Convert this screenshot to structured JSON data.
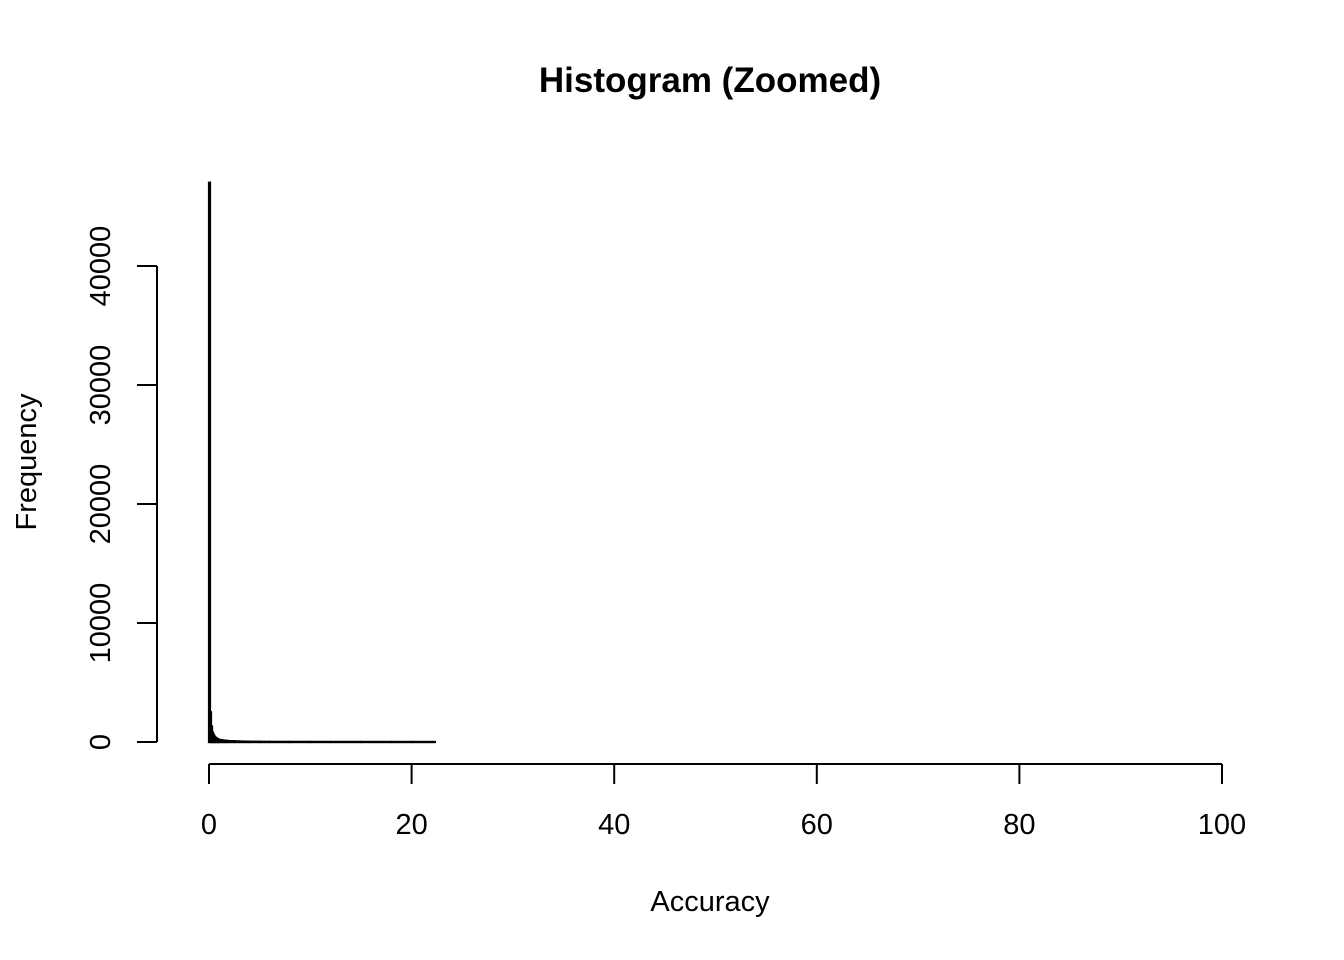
{
  "chart_data": {
    "type": "bar",
    "title": "Histogram (Zoomed)",
    "xlabel": "Accuracy",
    "ylabel": "Frequency",
    "xlim": [
      0,
      100
    ],
    "ylim": [
      0,
      47000
    ],
    "x_ticks": [
      0,
      20,
      40,
      60,
      80,
      100
    ],
    "y_ticks": [
      0,
      10000,
      20000,
      30000,
      40000
    ],
    "grid": false,
    "bar_color": "#000000",
    "bar_fill": "#ffffff",
    "series": [
      {
        "bins": [
          {
            "x0": 0.0,
            "x1": 0.1,
            "count": 47000
          },
          {
            "x0": 0.1,
            "x1": 0.2,
            "count": 2500
          },
          {
            "x0": 0.2,
            "x1": 0.3,
            "count": 1300
          },
          {
            "x0": 0.3,
            "x1": 0.4,
            "count": 800
          },
          {
            "x0": 0.4,
            "x1": 0.5,
            "count": 600
          },
          {
            "x0": 0.5,
            "x1": 0.6,
            "count": 450
          },
          {
            "x0": 0.6,
            "x1": 0.7,
            "count": 350
          },
          {
            "x0": 0.7,
            "x1": 0.8,
            "count": 290
          },
          {
            "x0": 0.8,
            "x1": 0.9,
            "count": 240
          },
          {
            "x0": 0.9,
            "x1": 1.0,
            "count": 200
          },
          {
            "x0": 1.0,
            "x1": 1.2,
            "count": 170
          },
          {
            "x0": 1.2,
            "x1": 1.4,
            "count": 140
          },
          {
            "x0": 1.4,
            "x1": 1.6,
            "count": 120
          },
          {
            "x0": 1.6,
            "x1": 1.8,
            "count": 100
          },
          {
            "x0": 1.8,
            "x1": 2.0,
            "count": 85
          },
          {
            "x0": 2.0,
            "x1": 2.5,
            "count": 70
          },
          {
            "x0": 2.5,
            "x1": 3.0,
            "count": 55
          },
          {
            "x0": 3.0,
            "x1": 3.5,
            "count": 42
          },
          {
            "x0": 3.5,
            "x1": 4.0,
            "count": 32
          },
          {
            "x0": 4.0,
            "x1": 5.0,
            "count": 25
          },
          {
            "x0": 5.0,
            "x1": 6.0,
            "count": 18
          },
          {
            "x0": 6.0,
            "x1": 8.0,
            "count": 12
          },
          {
            "x0": 8.0,
            "x1": 10.0,
            "count": 8
          },
          {
            "x0": 10.0,
            "x1": 12.0,
            "count": 5
          },
          {
            "x0": 12.0,
            "x1": 15.0,
            "count": 3
          },
          {
            "x0": 15.0,
            "x1": 18.0,
            "count": 2
          },
          {
            "x0": 18.0,
            "x1": 20.0,
            "count": 1
          },
          {
            "x0": 20.0,
            "x1": 22.3,
            "count": 1
          }
        ]
      }
    ]
  }
}
